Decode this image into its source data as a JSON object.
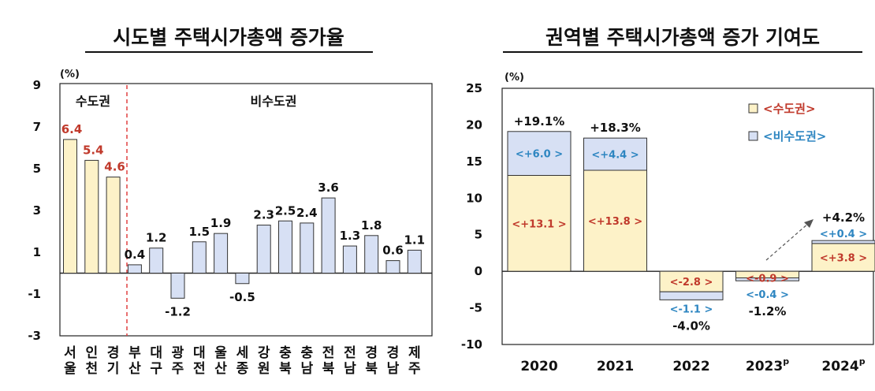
{
  "chart_data": [
    {
      "type": "bar",
      "title": "시도별 주택시가총액 증가율",
      "unit": "(%)",
      "ylim": [
        -3,
        9
      ],
      "yticks": [
        "9",
        "7",
        "5",
        "3",
        "1",
        "-1",
        "-3"
      ],
      "ytick_values": [
        9,
        7,
        5,
        3,
        1,
        -1,
        -3
      ],
      "groups": [
        "수도권",
        "비수도권"
      ],
      "categories": [
        "서울",
        "인천",
        "경기",
        "부산",
        "대구",
        "광주",
        "대전",
        "울산",
        "세종",
        "강원",
        "충북",
        "충남",
        "전북",
        "전남",
        "경북",
        "경남",
        "제주"
      ],
      "category_groups": [
        "수도권",
        "수도권",
        "수도권",
        "비수도권",
        "비수도권",
        "비수도권",
        "비수도권",
        "비수도권",
        "비수도권",
        "비수도권",
        "비수도권",
        "비수도권",
        "비수도권",
        "비수도권",
        "비수도권",
        "비수도권",
        "비수도권"
      ],
      "values": [
        6.4,
        5.4,
        4.6,
        0.4,
        1.2,
        -1.2,
        1.5,
        1.9,
        -0.5,
        2.3,
        2.5,
        2.4,
        3.6,
        1.3,
        1.8,
        0.6,
        1.1
      ],
      "value_labels": [
        "6.4",
        "5.4",
        "4.6",
        "0.4",
        "1.2",
        "-1.2",
        "1.5",
        "1.9",
        "-0.5",
        "2.3",
        "2.5",
        "2.4",
        "3.6",
        "1.3",
        "1.8",
        "0.6",
        "1.1"
      ],
      "colors": {
        "capital_fill": "#fdf2c8",
        "noncapital_fill": "#d7e0f4",
        "capital_label": "#c0392b",
        "divider": "#e04040"
      }
    },
    {
      "type": "bar",
      "stacked": true,
      "title": "권역별 주택시가총액 증가 기여도",
      "unit": "(%)",
      "ylim": [
        -10,
        25
      ],
      "yticks": [
        "25",
        "20",
        "15",
        "10",
        "5",
        "0",
        "-5",
        "-10"
      ],
      "ytick_values": [
        25,
        20,
        15,
        10,
        5,
        0,
        -5,
        -10
      ],
      "categories": [
        "2020",
        "2021",
        "2022",
        "2023",
        "2024"
      ],
      "category_superscripts": [
        "",
        "",
        "",
        "p",
        "p"
      ],
      "series": [
        {
          "name": "<수도권>",
          "values": [
            13.1,
            13.8,
            -2.8,
            -0.9,
            3.8
          ],
          "labels": [
            "<+13.1 >",
            "<+13.8 >",
            "<-2.8 >",
            "<-0.9 >",
            "<+3.8 >"
          ]
        },
        {
          "name": "<비수도권>",
          "values": [
            6.0,
            4.4,
            -1.1,
            -0.4,
            0.4
          ],
          "labels": [
            "<+6.0 >",
            "<+4.4 >",
            "<-1.1 >",
            "<-0.4 >",
            "<+0.4 >"
          ]
        }
      ],
      "totals": [
        "+19.1%",
        "+18.3%",
        "-4.0%",
        "-1.2%",
        "+4.2%"
      ],
      "colors": {
        "capital_fill": "#fdf2c8",
        "noncapital_fill": "#d7e0f4",
        "capital_label": "#c0392b",
        "noncapital_label": "#2e86c1"
      }
    }
  ]
}
